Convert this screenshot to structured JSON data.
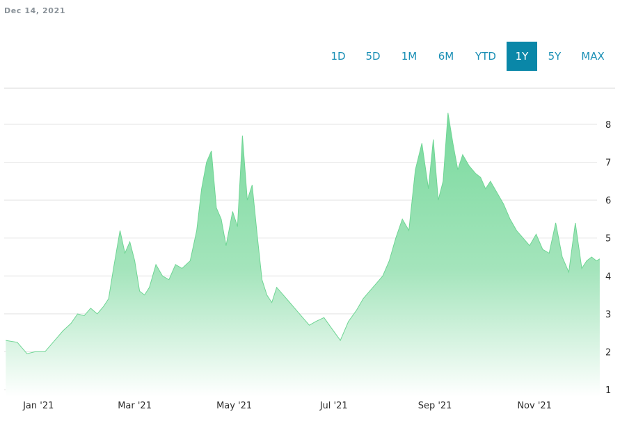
{
  "header": {
    "date": "Dec 14, 2021"
  },
  "range_selector": {
    "options": [
      "1D",
      "5D",
      "1M",
      "6M",
      "YTD",
      "1Y",
      "5Y",
      "MAX"
    ],
    "selected": "1Y"
  },
  "colors": {
    "accent": "#0a87a8",
    "link": "#1a8fb5",
    "area_top": "#77d99c",
    "area_bottom": "#ffffff"
  },
  "chart_data": {
    "type": "area",
    "title": "",
    "xlabel": "",
    "ylabel": "",
    "x_ticks": [
      "Jan '21",
      "Mar '21",
      "May '21",
      "Jul '21",
      "Sep '21",
      "Nov '21"
    ],
    "y_ticks": [
      1,
      2,
      3,
      4,
      5,
      6,
      7,
      8
    ],
    "ylim": [
      1,
      8.7
    ],
    "xlim": [
      "2020-12-14",
      "2021-12-20"
    ],
    "grid": "horizontal",
    "y_axis_position": "right",
    "series": [
      {
        "x": [
          "2020-12-15",
          "2020-12-22",
          "2020-12-28",
          "2021-01-02",
          "2021-01-08",
          "2021-01-14",
          "2021-01-19",
          "2021-01-24",
          "2021-01-28",
          "2021-02-01",
          "2021-02-05",
          "2021-02-09",
          "2021-02-13",
          "2021-02-16",
          "2021-02-19",
          "2021-02-23",
          "2021-02-26",
          "2021-03-01",
          "2021-03-04",
          "2021-03-07",
          "2021-03-10",
          "2021-03-13",
          "2021-03-17",
          "2021-03-21",
          "2021-03-25",
          "2021-03-29",
          "2021-04-02",
          "2021-04-07",
          "2021-04-11",
          "2021-04-14",
          "2021-04-17",
          "2021-04-20",
          "2021-04-23",
          "2021-04-26",
          "2021-04-29",
          "2021-05-03",
          "2021-05-06",
          "2021-05-09",
          "2021-05-12",
          "2021-05-15",
          "2021-05-18",
          "2021-05-21",
          "2021-05-24",
          "2021-05-27",
          "2021-05-30",
          "2021-06-03",
          "2021-06-07",
          "2021-06-11",
          "2021-06-15",
          "2021-06-19",
          "2021-06-23",
          "2021-06-28",
          "2021-07-03",
          "2021-07-08",
          "2021-07-13",
          "2021-07-18",
          "2021-07-22",
          "2021-07-26",
          "2021-07-30",
          "2021-08-03",
          "2021-08-07",
          "2021-08-11",
          "2021-08-15",
          "2021-08-19",
          "2021-08-23",
          "2021-08-27",
          "2021-08-31",
          "2021-09-03",
          "2021-09-06",
          "2021-09-09",
          "2021-09-12",
          "2021-09-15",
          "2021-09-18",
          "2021-09-21",
          "2021-09-25",
          "2021-09-29",
          "2021-10-02",
          "2021-10-05",
          "2021-10-08",
          "2021-10-12",
          "2021-10-16",
          "2021-10-20",
          "2021-10-24",
          "2021-10-28",
          "2021-11-01",
          "2021-11-05",
          "2021-11-09",
          "2021-11-13",
          "2021-11-17",
          "2021-11-21",
          "2021-11-25",
          "2021-11-29",
          "2021-12-03",
          "2021-12-06",
          "2021-12-09",
          "2021-12-12",
          "2021-12-14"
        ],
        "values": [
          2.3,
          2.25,
          1.95,
          2.0,
          2.0,
          2.3,
          2.55,
          2.75,
          3.0,
          2.95,
          3.15,
          3.0,
          3.2,
          3.4,
          4.2,
          5.2,
          4.6,
          4.9,
          4.4,
          3.6,
          3.5,
          3.7,
          4.3,
          4.0,
          3.9,
          4.3,
          4.2,
          4.4,
          5.2,
          6.3,
          7.0,
          7.3,
          5.8,
          5.5,
          4.8,
          5.7,
          5.3,
          7.7,
          6.0,
          6.4,
          5.1,
          3.9,
          3.5,
          3.3,
          3.7,
          3.5,
          3.3,
          3.1,
          2.9,
          2.7,
          2.8,
          2.9,
          2.6,
          2.3,
          2.8,
          3.1,
          3.4,
          3.6,
          3.8,
          4.0,
          4.4,
          5.0,
          5.5,
          5.2,
          6.8,
          7.5,
          6.3,
          7.6,
          6.0,
          6.5,
          8.3,
          7.5,
          6.8,
          7.2,
          6.9,
          6.7,
          6.6,
          6.3,
          6.5,
          6.2,
          5.9,
          5.5,
          5.2,
          5.0,
          4.8,
          5.1,
          4.7,
          4.6,
          5.4,
          4.5,
          4.1,
          5.4,
          4.2,
          4.4,
          4.5,
          4.4,
          4.45
        ]
      }
    ]
  }
}
